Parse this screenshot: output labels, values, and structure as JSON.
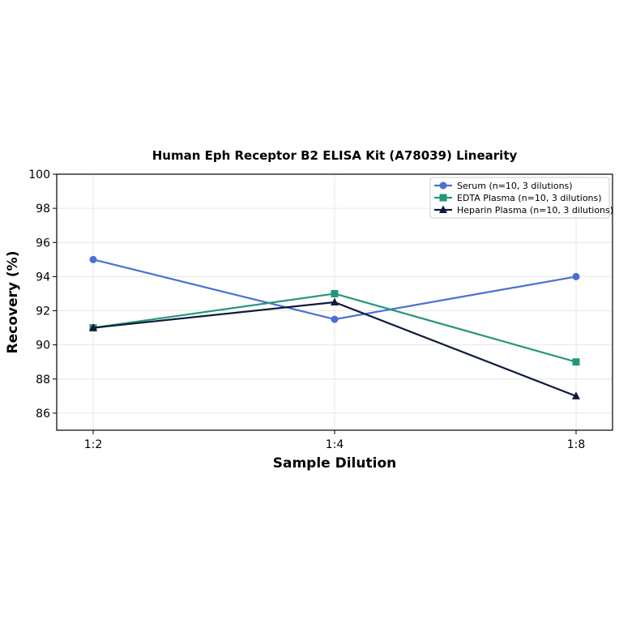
{
  "chart_data": {
    "type": "line",
    "title": "Human Eph Receptor B2 ELISA Kit (A78039) Linearity",
    "xlabel": "Sample Dilution",
    "ylabel": "Recovery (%)",
    "categories": [
      "1:2",
      "1:4",
      "1:8"
    ],
    "ylim": [
      85,
      100
    ],
    "yticks": [
      86,
      88,
      90,
      92,
      94,
      96,
      98,
      100
    ],
    "grid": true,
    "legend_position": "top-right",
    "series": [
      {
        "name": "Serum (n=10, 3 dilutions)",
        "values": [
          95,
          91.5,
          94
        ],
        "color": "#4a6fd4",
        "marker": "circle"
      },
      {
        "name": "EDTA Plasma (n=10, 3 dilutions)",
        "values": [
          91,
          93,
          89
        ],
        "color": "#25967a",
        "marker": "square"
      },
      {
        "name": "Heparin Plasma (n=10, 3 dilutions)",
        "values": [
          91,
          92.5,
          87
        ],
        "color": "#0f1a3c",
        "marker": "triangle"
      }
    ]
  }
}
